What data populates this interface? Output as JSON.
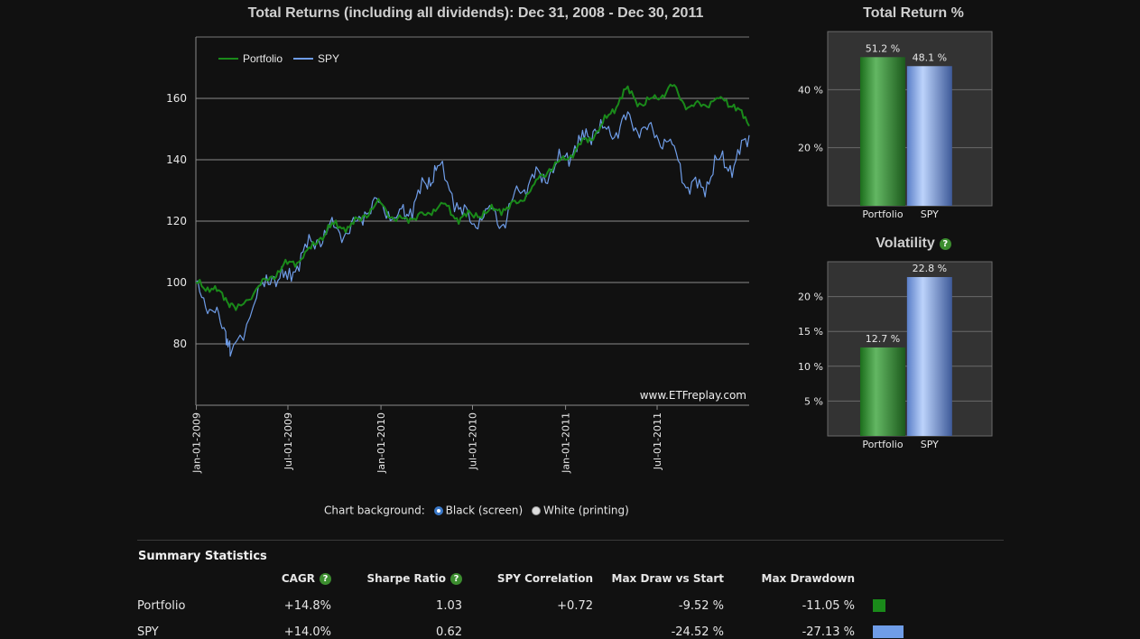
{
  "main_chart": {
    "title": "Total Returns (including all dividends): Dec 31, 2008 - Dec 30, 2011",
    "watermark": "www.ETFreplay.com",
    "chart_data": {
      "type": "line",
      "title": "Total Returns (including all dividends): Dec 31, 2008 - Dec 30, 2011",
      "x_ticks": [
        "Jan-01-2009",
        "Jul-01-2009",
        "Jan-01-2010",
        "Jul-01-2010",
        "Jan-01-2011",
        "Jul-01-2011"
      ],
      "y_ticks": [
        80,
        100,
        120,
        140,
        160
      ],
      "xlim": [
        "2008-12-31",
        "2011-12-30"
      ],
      "ylim": [
        60,
        180
      ],
      "grid": true,
      "legend": "top-left",
      "series": [
        {
          "name": "Portfolio",
          "color": "#1a8a1a",
          "x": [
            "2008-12-31",
            "2009-01-31",
            "2009-02-28",
            "2009-03-20",
            "2009-04-30",
            "2009-05-31",
            "2009-06-30",
            "2009-07-31",
            "2009-08-31",
            "2009-09-30",
            "2009-10-31",
            "2009-11-30",
            "2009-12-31",
            "2010-01-31",
            "2010-02-28",
            "2010-03-31",
            "2010-04-30",
            "2010-05-31",
            "2010-06-30",
            "2010-07-31",
            "2010-08-31",
            "2010-09-30",
            "2010-10-31",
            "2010-11-30",
            "2010-12-31",
            "2011-01-31",
            "2011-02-28",
            "2011-03-31",
            "2011-04-30",
            "2011-05-31",
            "2011-06-30",
            "2011-07-31",
            "2011-08-31",
            "2011-09-30",
            "2011-10-31",
            "2011-11-30",
            "2011-12-30"
          ],
          "values": [
            100,
            98,
            95,
            91,
            98,
            102,
            106,
            108,
            114,
            119,
            118,
            122,
            126,
            120,
            121,
            122,
            126,
            121,
            122,
            123,
            124,
            126,
            132,
            137,
            140,
            145,
            148,
            155,
            163,
            158,
            160,
            164,
            157,
            158,
            160,
            158,
            151
          ]
        },
        {
          "name": "SPY",
          "color": "#6f9de8",
          "x": [
            "2008-12-31",
            "2009-01-31",
            "2009-02-28",
            "2009-03-09",
            "2009-04-30",
            "2009-05-31",
            "2009-06-30",
            "2009-07-31",
            "2009-08-31",
            "2009-09-30",
            "2009-10-31",
            "2009-11-30",
            "2009-12-31",
            "2010-01-31",
            "2010-02-28",
            "2010-03-31",
            "2010-04-23",
            "2010-05-31",
            "2010-06-30",
            "2010-07-31",
            "2010-08-31",
            "2010-09-30",
            "2010-10-31",
            "2010-11-30",
            "2010-12-31",
            "2011-01-31",
            "2011-02-28",
            "2011-03-31",
            "2011-04-30",
            "2011-05-31",
            "2011-06-30",
            "2011-07-31",
            "2011-08-31",
            "2011-09-30",
            "2011-10-31",
            "2011-11-30",
            "2011-12-30"
          ],
          "values": [
            100,
            91,
            84,
            76,
            95,
            102,
            101,
            110,
            114,
            118,
            116,
            123,
            126,
            121,
            124,
            132,
            138,
            126,
            119,
            124,
            119,
            130,
            134,
            135,
            141,
            146,
            150,
            148,
            153,
            150,
            148,
            145,
            131,
            131,
            140,
            138,
            148
          ]
        }
      ]
    }
  },
  "total_return": {
    "title": "Total Return %",
    "chart_data": {
      "type": "bar",
      "title": "Total Return %",
      "categories": [
        "Portfolio",
        "SPY"
      ],
      "values": [
        51.2,
        48.1
      ],
      "value_labels": [
        "51.2 %",
        "48.1 %"
      ],
      "y_ticks": [
        "20 %",
        "40 %"
      ],
      "ylim": [
        0,
        60
      ],
      "colors": [
        "#2e8b2e",
        "#8fb0ee"
      ]
    }
  },
  "volatility": {
    "title": "Volatility",
    "help_icon": "question-circle-icon",
    "chart_data": {
      "type": "bar",
      "title": "Volatility",
      "categories": [
        "Portfolio",
        "SPY"
      ],
      "values": [
        12.7,
        22.8
      ],
      "value_labels": [
        "12.7 %",
        "22.8 %"
      ],
      "y_ticks": [
        "5 %",
        "10 %",
        "15 %",
        "20 %"
      ],
      "ylim": [
        0,
        25
      ],
      "colors": [
        "#2e8b2e",
        "#8fb0ee"
      ]
    }
  },
  "background_selector": {
    "label": "Chart background:",
    "options": [
      {
        "label": "Black (screen)",
        "selected": true
      },
      {
        "label": "White (printing)",
        "selected": false
      }
    ]
  },
  "summary": {
    "title": "Summary Statistics",
    "columns": [
      "CAGR",
      "Sharpe Ratio",
      "SPY Correlation",
      "Max Draw vs Start",
      "Max Drawdown"
    ],
    "rows": [
      {
        "name": "Portfolio",
        "cagr": "+14.8%",
        "sharpe": "1.03",
        "corr": "+0.72",
        "max_draw_start": "-9.52 %",
        "max_drawdown": "-11.05 %",
        "swatch": "#1a8a1a"
      },
      {
        "name": "SPY",
        "cagr": "+14.0%",
        "sharpe": "0.62",
        "corr": "",
        "max_draw_start": "-24.52 %",
        "max_drawdown": "-27.13 %",
        "swatch": "#6f9de8"
      }
    ]
  }
}
